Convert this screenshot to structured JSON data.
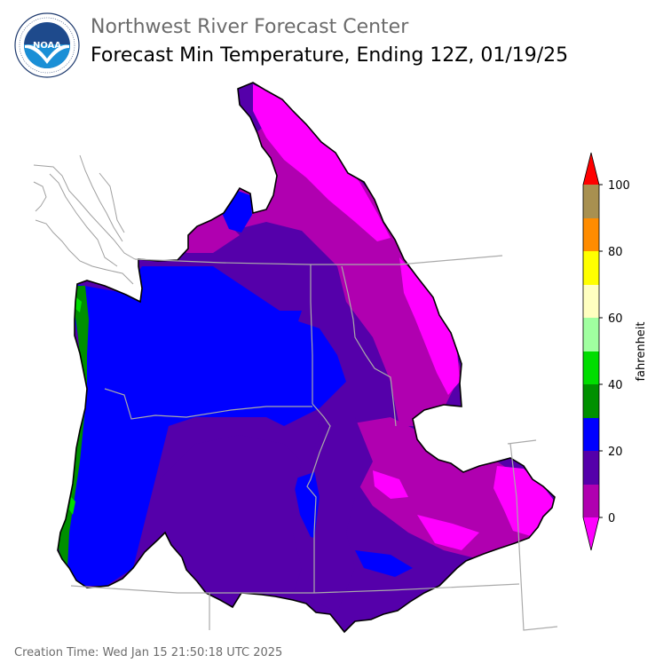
{
  "header": {
    "org_name": "Northwest River Forecast Center",
    "product_title": "Forecast Min Temperature, Ending 12Z, 01/19/25",
    "logo_text": "NOAA",
    "logo_ring_text": "NATIONAL OCEANIC AND ATMOSPHERIC ADMINISTRATION · U.S. DEPARTMENT OF COMMERCE"
  },
  "legend": {
    "unit_label": "fahrenheit",
    "ticks": [
      "100",
      "80",
      "60",
      "40",
      "20",
      "0"
    ],
    "colors": {
      "above_100": "#ff0000",
      "90_100": "#a89050",
      "80_90": "#ff8c00",
      "70_80": "#ffff00",
      "60_70": "#ffffc0",
      "50_60": "#a0ffa0",
      "40_50": "#00dd00",
      "30_40": "#009000",
      "20_30": "#0000ff",
      "10_20": "#5500aa",
      "0_10": "#b000b0",
      "below_0": "#ff00ff"
    }
  },
  "footer": {
    "creation_time": "Creation Time: Wed Jan 15 21:50:18 UTC 2025"
  }
}
